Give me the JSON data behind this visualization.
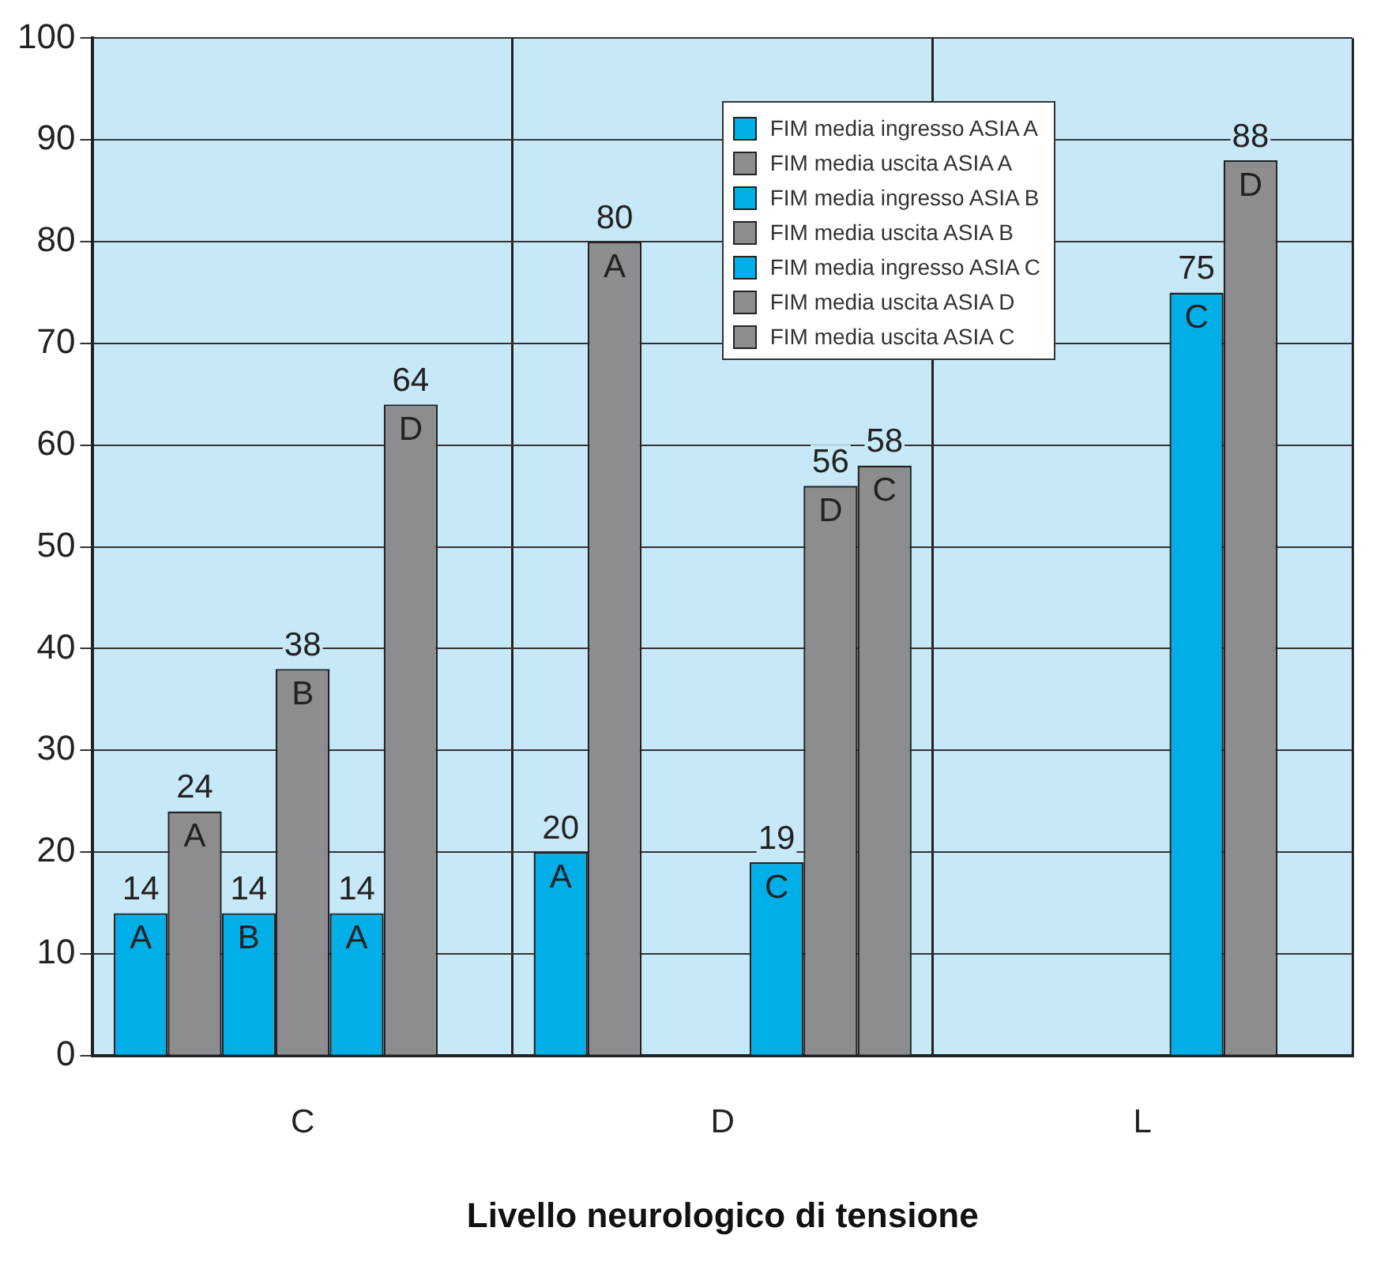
{
  "chart_data": {
    "type": "bar",
    "xlabel": "Livello neurologico di tensione",
    "categories": [
      "C",
      "D",
      "L"
    ],
    "series": [
      {
        "name": "FIM media ingresso ASIA A",
        "color": "#00aee8",
        "values": [
          14,
          20,
          null
        ]
      },
      {
        "name": "FIM media uscita ASIA A",
        "color": "#8d8d90",
        "values": [
          24,
          80,
          null
        ]
      },
      {
        "name": "FIM media ingresso ASIA B",
        "color": "#00aee8",
        "values": [
          14,
          null,
          null
        ]
      },
      {
        "name": "FIM media uscita ASIA B",
        "color": "#8d8d90",
        "values": [
          38,
          null,
          null
        ]
      },
      {
        "name": "FIM media ingresso ASIA C",
        "color": "#00aee8",
        "values": [
          14,
          19,
          75
        ]
      },
      {
        "name": "FIM media uscita ASIA D",
        "color": "#8d8d90",
        "values": [
          64,
          56,
          88
        ]
      },
      {
        "name": "FIM media uscita ASIA C",
        "color": "#8d8d90",
        "values": [
          null,
          58,
          null
        ]
      }
    ],
    "annotations": [
      "A",
      "A",
      "B",
      "B",
      "A",
      "D",
      "A",
      "A",
      "C",
      "D",
      "C",
      "C",
      "D"
    ],
    "ylim": [
      0,
      100
    ],
    "yticks": [
      0,
      10,
      20,
      30,
      40,
      50,
      60,
      70,
      80,
      90,
      100
    ],
    "grid": true,
    "legend": "top",
    "data_labels": true
  }
}
